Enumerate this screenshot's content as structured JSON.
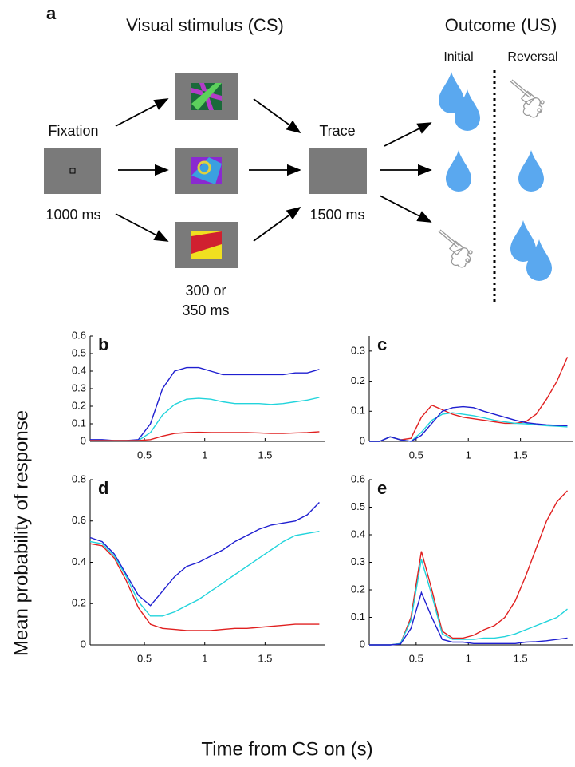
{
  "diagram": {
    "panel_label": "a",
    "stimulus_title": "Visual stimulus (CS)",
    "outcome_title": "Outcome (US)",
    "initial": "Initial",
    "reversal": "Reversal",
    "fixation": "Fixation",
    "fixation_time": "1000 ms",
    "trace": "Trace",
    "trace_time": "1500 ms",
    "cs_time": [
      "300 or",
      "350 ms"
    ]
  },
  "y_label": "Mean probability of response",
  "x_label": "Time from CS on (s)",
  "chart_data": [
    {
      "type": "line",
      "label": "b",
      "x": [
        0.05,
        0.15,
        0.25,
        0.35,
        0.45,
        0.55,
        0.65,
        0.75,
        0.85,
        0.95,
        1.05,
        1.15,
        1.25,
        1.35,
        1.45,
        1.55,
        1.65,
        1.75,
        1.85,
        1.95
      ],
      "series": [
        {
          "color": "#1f1fd0",
          "values": [
            0.01,
            0.01,
            0.005,
            0.005,
            0.01,
            0.1,
            0.3,
            0.4,
            0.42,
            0.42,
            0.4,
            0.38,
            0.38,
            0.38,
            0.38,
            0.38,
            0.38,
            0.39,
            0.39,
            0.41
          ]
        },
        {
          "color": "#22d4dc",
          "values": [
            0.005,
            0.005,
            0.005,
            0.005,
            0.005,
            0.05,
            0.15,
            0.21,
            0.24,
            0.245,
            0.24,
            0.225,
            0.215,
            0.215,
            0.215,
            0.21,
            0.215,
            0.225,
            0.235,
            0.25
          ]
        },
        {
          "color": "#e02020",
          "values": [
            0.005,
            0.005,
            0.005,
            0.005,
            0.005,
            0.01,
            0.03,
            0.045,
            0.05,
            0.052,
            0.05,
            0.05,
            0.05,
            0.05,
            0.048,
            0.045,
            0.045,
            0.048,
            0.05,
            0.055
          ]
        }
      ],
      "xlim": [
        0.05,
        2
      ],
      "ylim": [
        0,
        0.6
      ],
      "xticks": [
        0.5,
        1,
        1.5
      ],
      "yticks": [
        0,
        0.1,
        0.2,
        0.3,
        0.4,
        0.5,
        0.6
      ]
    },
    {
      "type": "line",
      "label": "c",
      "x": [
        0.05,
        0.15,
        0.25,
        0.35,
        0.45,
        0.55,
        0.65,
        0.75,
        0.85,
        0.95,
        1.05,
        1.15,
        1.25,
        1.35,
        1.45,
        1.55,
        1.65,
        1.75,
        1.85,
        1.95
      ],
      "series": [
        {
          "color": "#e02020",
          "values": [
            0,
            0,
            0.015,
            0.005,
            0.01,
            0.08,
            0.12,
            0.105,
            0.09,
            0.08,
            0.075,
            0.07,
            0.065,
            0.06,
            0.06,
            0.065,
            0.09,
            0.14,
            0.2,
            0.28
          ]
        },
        {
          "color": "#22d4dc",
          "values": [
            0,
            0,
            0.015,
            0.005,
            0,
            0.03,
            0.07,
            0.09,
            0.095,
            0.09,
            0.085,
            0.078,
            0.07,
            0.065,
            0.06,
            0.058,
            0.055,
            0.052,
            0.05,
            0.048
          ]
        },
        {
          "color": "#1f1fd0",
          "values": [
            0,
            0,
            0.015,
            0.005,
            0,
            0.02,
            0.06,
            0.1,
            0.112,
            0.115,
            0.112,
            0.1,
            0.09,
            0.08,
            0.07,
            0.062,
            0.058,
            0.055,
            0.053,
            0.052
          ]
        }
      ],
      "xlim": [
        0.05,
        2
      ],
      "ylim": [
        0,
        0.35
      ],
      "xticks": [
        0.5,
        1,
        1.5
      ],
      "yticks": [
        0,
        0.1,
        0.2,
        0.3
      ]
    },
    {
      "type": "line",
      "label": "d",
      "x": [
        0.05,
        0.15,
        0.25,
        0.35,
        0.45,
        0.55,
        0.65,
        0.75,
        0.85,
        0.95,
        1.05,
        1.15,
        1.25,
        1.35,
        1.45,
        1.55,
        1.65,
        1.75,
        1.85,
        1.95
      ],
      "series": [
        {
          "color": "#1f1fd0",
          "values": [
            0.52,
            0.5,
            0.44,
            0.34,
            0.24,
            0.19,
            0.26,
            0.33,
            0.38,
            0.4,
            0.43,
            0.46,
            0.5,
            0.53,
            0.56,
            0.58,
            0.59,
            0.6,
            0.63,
            0.69
          ]
        },
        {
          "color": "#22d4dc",
          "values": [
            0.5,
            0.49,
            0.43,
            0.33,
            0.21,
            0.14,
            0.14,
            0.16,
            0.19,
            0.22,
            0.26,
            0.3,
            0.34,
            0.38,
            0.42,
            0.46,
            0.5,
            0.53,
            0.54,
            0.55
          ]
        },
        {
          "color": "#e02020",
          "values": [
            0.49,
            0.48,
            0.42,
            0.31,
            0.18,
            0.1,
            0.08,
            0.075,
            0.07,
            0.07,
            0.07,
            0.075,
            0.08,
            0.08,
            0.085,
            0.09,
            0.095,
            0.1,
            0.1,
            0.1
          ]
        }
      ],
      "xlim": [
        0.05,
        2
      ],
      "ylim": [
        0,
        0.8
      ],
      "xticks": [
        0.5,
        1,
        1.5
      ],
      "yticks": [
        0,
        0.2,
        0.4,
        0.6,
        0.8
      ]
    },
    {
      "type": "line",
      "label": "e",
      "x": [
        0.05,
        0.15,
        0.25,
        0.35,
        0.45,
        0.55,
        0.65,
        0.75,
        0.85,
        0.95,
        1.05,
        1.15,
        1.25,
        1.35,
        1.45,
        1.55,
        1.65,
        1.75,
        1.85,
        1.95
      ],
      "series": [
        {
          "color": "#e02020",
          "values": [
            0,
            0,
            0,
            0.005,
            0.1,
            0.34,
            0.2,
            0.05,
            0.025,
            0.025,
            0.035,
            0.055,
            0.07,
            0.1,
            0.16,
            0.25,
            0.35,
            0.45,
            0.52,
            0.56
          ]
        },
        {
          "color": "#22d4dc",
          "values": [
            0,
            0,
            0,
            0.005,
            0.09,
            0.31,
            0.18,
            0.04,
            0.02,
            0.02,
            0.02,
            0.025,
            0.025,
            0.03,
            0.04,
            0.055,
            0.07,
            0.085,
            0.1,
            0.13
          ]
        },
        {
          "color": "#1f1fd0",
          "values": [
            0,
            0,
            0,
            0.003,
            0.06,
            0.19,
            0.1,
            0.02,
            0.01,
            0.01,
            0.005,
            0.005,
            0.005,
            0.005,
            0.005,
            0.01,
            0.012,
            0.015,
            0.02,
            0.025
          ]
        }
      ],
      "xlim": [
        0.05,
        2
      ],
      "ylim": [
        0,
        0.6
      ],
      "xticks": [
        0.5,
        1,
        1.5
      ],
      "yticks": [
        0,
        0.1,
        0.2,
        0.3,
        0.4,
        0.5,
        0.6
      ]
    }
  ]
}
